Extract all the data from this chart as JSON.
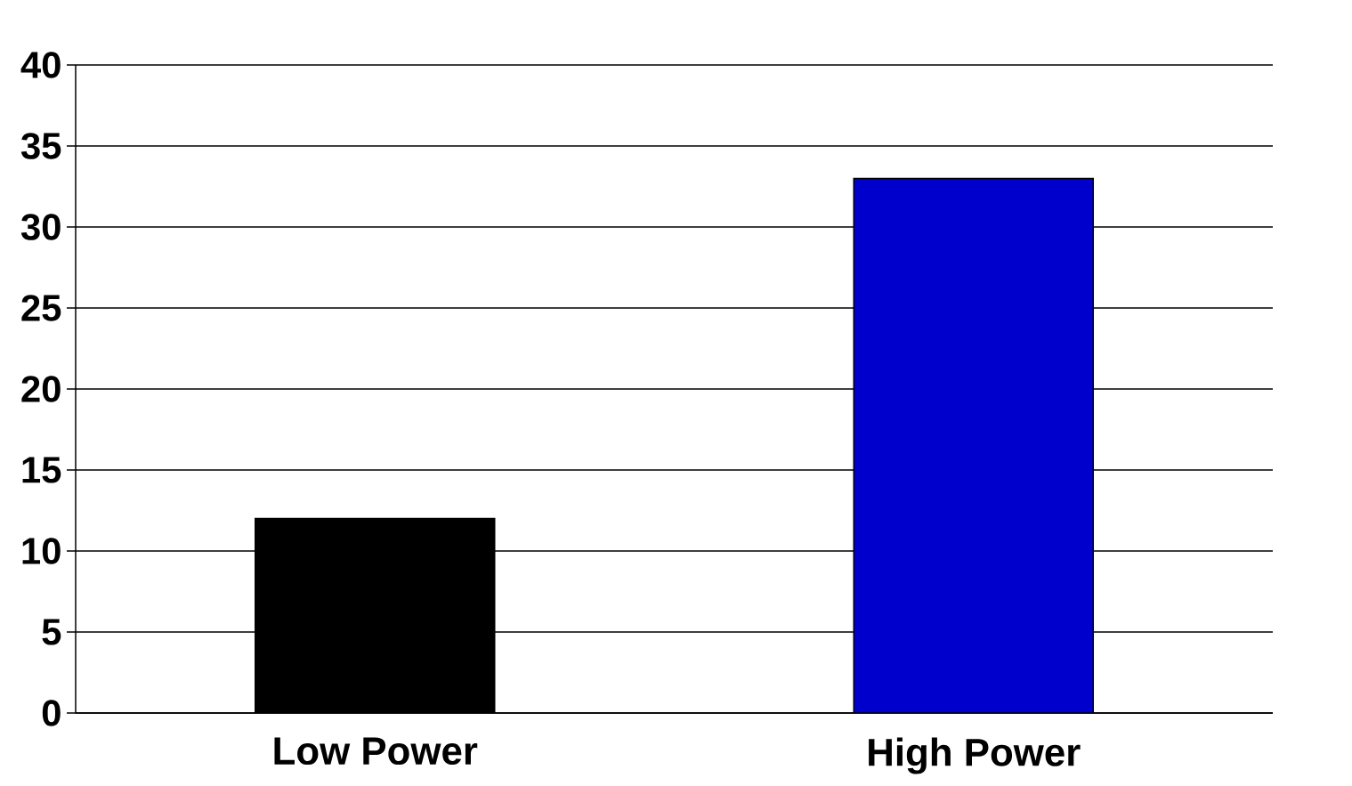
{
  "chart_data": {
    "type": "bar",
    "categories": [
      "Low Power",
      "High Power"
    ],
    "values": [
      12,
      33
    ],
    "colors": [
      "#000000",
      "#0000cc"
    ],
    "ylim": [
      0,
      40
    ],
    "yticks": [
      0,
      5,
      10,
      15,
      20,
      25,
      30,
      35,
      40
    ],
    "grid": "y"
  }
}
